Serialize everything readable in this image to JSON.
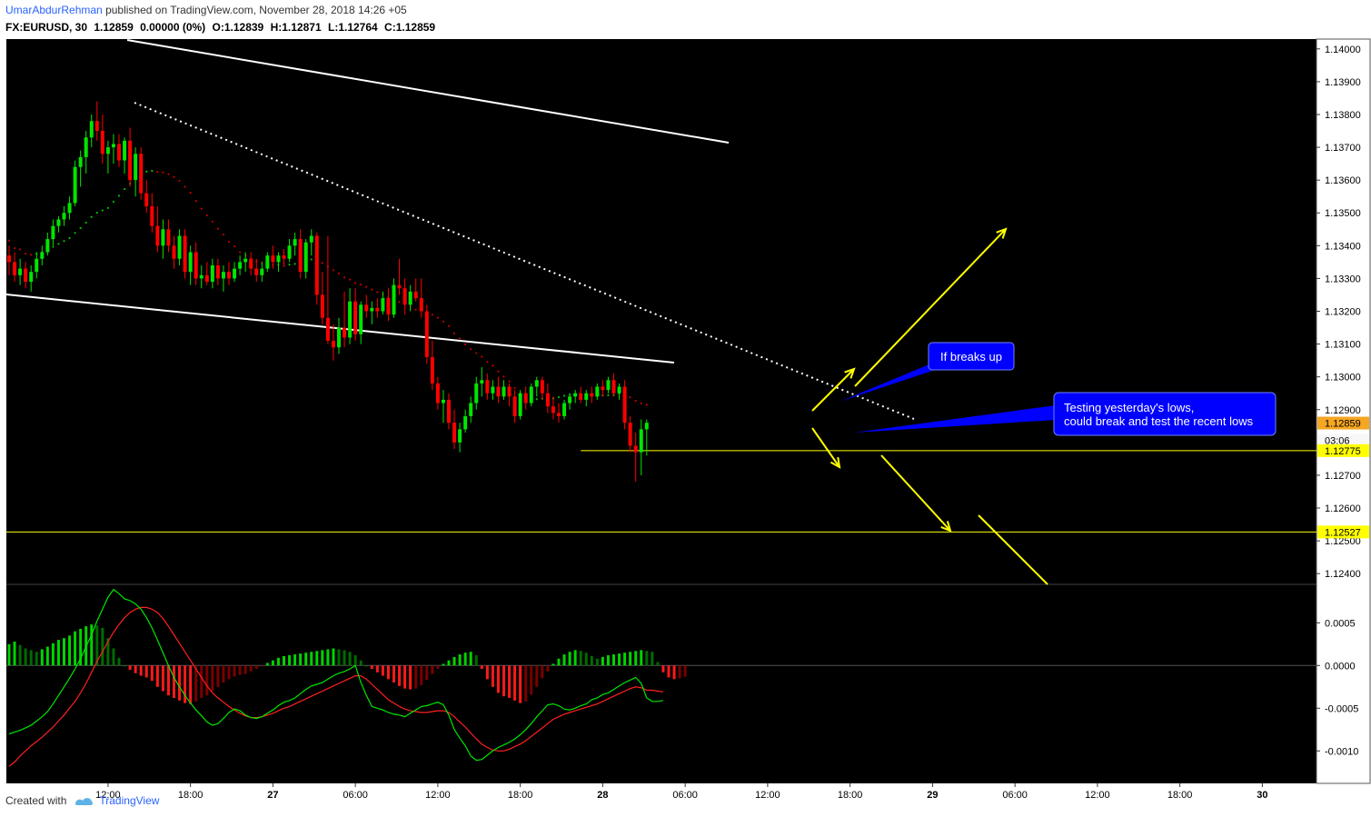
{
  "header": {
    "author": "UmarAbdurRehman",
    "published_text": "published on TradingView.com, November 28, 2018 14:26 +05",
    "symbol": "FX:EURUSD, 30",
    "last": "1.12859",
    "change": "0.00000 (0%)",
    "o_label": "O:",
    "o": "1.12839",
    "h_label": "H:",
    "h": "1.12871",
    "l_label": "L:",
    "l": "1.12764",
    "c_label": "C:",
    "c": "1.12859"
  },
  "footer": {
    "created_with": "Created with",
    "brand": "TradingView"
  },
  "chart_data": {
    "type": "candlestick",
    "bg": "#000000",
    "price_axis": {
      "ticks": [
        "1.14000",
        "1.13900",
        "1.13800",
        "1.13700",
        "1.13600",
        "1.13500",
        "1.13400",
        "1.13300",
        "1.13200",
        "1.13100",
        "1.13000",
        "1.12900",
        "1.12700",
        "1.12600",
        "1.12500",
        "1.12400"
      ],
      "min": 1.1237,
      "max": 1.1403
    },
    "price_labels": [
      {
        "text": "1.12859",
        "value": 1.12859,
        "bg": "#f5a623",
        "fg": "#000000"
      },
      {
        "text": "03:06",
        "value": 1.12806,
        "bg": "#f7f7f7",
        "fg": "#000000"
      },
      {
        "text": "1.12775",
        "value": 1.12775,
        "bg": "#ffff00",
        "fg": "#000000"
      },
      {
        "text": "1.12527",
        "value": 1.12527,
        "bg": "#ffff00",
        "fg": "#000000"
      }
    ],
    "time_axis": [
      "12:00",
      "18:00",
      "27",
      "06:00",
      "12:00",
      "18:00",
      "28",
      "06:00",
      "12:00",
      "18:00",
      "29",
      "06:00",
      "12:00",
      "18:00",
      "30"
    ],
    "macd_axis": {
      "ticks": [
        "0.0005",
        "0.0000",
        "-0.0005",
        "-0.0010"
      ],
      "min": -0.00138,
      "max": 0.00095
    },
    "candles": [
      [
        1.1337,
        1.134,
        1.1331,
        1.1335
      ],
      [
        1.1335,
        1.1338,
        1.1329,
        1.1331
      ],
      [
        1.1331,
        1.1336,
        1.1328,
        1.1333
      ],
      [
        1.1333,
        1.1335,
        1.1327,
        1.1329
      ],
      [
        1.1329,
        1.1334,
        1.1326,
        1.1332
      ],
      [
        1.1332,
        1.1338,
        1.133,
        1.1336
      ],
      [
        1.1336,
        1.134,
        1.1334,
        1.1338
      ],
      [
        1.1338,
        1.1344,
        1.1337,
        1.1342
      ],
      [
        1.1342,
        1.1348,
        1.134,
        1.1346
      ],
      [
        1.1346,
        1.1349,
        1.1344,
        1.1348
      ],
      [
        1.1348,
        1.1352,
        1.1346,
        1.135
      ],
      [
        1.135,
        1.1355,
        1.1348,
        1.1353
      ],
      [
        1.1353,
        1.1366,
        1.1352,
        1.1364
      ],
      [
        1.1364,
        1.1369,
        1.1358,
        1.1367
      ],
      [
        1.1367,
        1.1375,
        1.1362,
        1.1373
      ],
      [
        1.1373,
        1.138,
        1.137,
        1.1378
      ],
      [
        1.1378,
        1.1384,
        1.1372,
        1.1375
      ],
      [
        1.1375,
        1.138,
        1.1365,
        1.1368
      ],
      [
        1.1368,
        1.1372,
        1.1362,
        1.137
      ],
      [
        1.137,
        1.1374,
        1.1365,
        1.1371
      ],
      [
        1.1371,
        1.1374,
        1.1364,
        1.1366
      ],
      [
        1.1366,
        1.1373,
        1.1362,
        1.1372
      ],
      [
        1.1372,
        1.1376,
        1.1358,
        1.136
      ],
      [
        1.136,
        1.137,
        1.1355,
        1.1368
      ],
      [
        1.1368,
        1.137,
        1.1354,
        1.1356
      ],
      [
        1.1356,
        1.136,
        1.135,
        1.1352
      ],
      [
        1.1352,
        1.1356,
        1.1344,
        1.1346
      ],
      [
        1.1346,
        1.1352,
        1.1338,
        1.134
      ],
      [
        1.134,
        1.1348,
        1.1336,
        1.1345
      ],
      [
        1.1345,
        1.1348,
        1.1338,
        1.134
      ],
      [
        1.134,
        1.1343,
        1.1333,
        1.1336
      ],
      [
        1.1336,
        1.1345,
        1.1334,
        1.1343
      ],
      [
        1.1343,
        1.1345,
        1.133,
        1.1332
      ],
      [
        1.1332,
        1.134,
        1.1328,
        1.1338
      ],
      [
        1.1338,
        1.1341,
        1.1328,
        1.133
      ],
      [
        1.133,
        1.1334,
        1.1327,
        1.1331
      ],
      [
        1.1331,
        1.1335,
        1.1328,
        1.1329
      ],
      [
        1.1329,
        1.1336,
        1.1327,
        1.1334
      ],
      [
        1.1334,
        1.1336,
        1.1328,
        1.133
      ],
      [
        1.133,
        1.1334,
        1.1326,
        1.1332
      ],
      [
        1.1332,
        1.1335,
        1.1328,
        1.133
      ],
      [
        1.133,
        1.1335,
        1.1329,
        1.1333
      ],
      [
        1.1333,
        1.1337,
        1.1331,
        1.1335
      ],
      [
        1.1335,
        1.1338,
        1.1332,
        1.1336
      ],
      [
        1.1336,
        1.1338,
        1.1331,
        1.1333
      ],
      [
        1.1333,
        1.1336,
        1.1329,
        1.1331
      ],
      [
        1.1331,
        1.1335,
        1.1329,
        1.1333
      ],
      [
        1.1333,
        1.1338,
        1.1332,
        1.1337
      ],
      [
        1.1337,
        1.134,
        1.1333,
        1.1335
      ],
      [
        1.1335,
        1.1338,
        1.1332,
        1.1337
      ],
      [
        1.1337,
        1.1339,
        1.1334,
        1.1336
      ],
      [
        1.1336,
        1.1342,
        1.1335,
        1.134
      ],
      [
        1.134,
        1.1344,
        1.1337,
        1.1342
      ],
      [
        1.1342,
        1.1345,
        1.133,
        1.1332
      ],
      [
        1.1332,
        1.1342,
        1.133,
        1.1341
      ],
      [
        1.1341,
        1.1345,
        1.1337,
        1.1343
      ],
      [
        1.1343,
        1.1344,
        1.1322,
        1.1325
      ],
      [
        1.1325,
        1.1332,
        1.1316,
        1.1318
      ],
      [
        1.1318,
        1.1343,
        1.131,
        1.1311
      ],
      [
        1.1311,
        1.1316,
        1.1305,
        1.1309
      ],
      [
        1.1309,
        1.1318,
        1.1307,
        1.1315
      ],
      [
        1.1315,
        1.1326,
        1.1309,
        1.1312
      ],
      [
        1.1312,
        1.1327,
        1.131,
        1.1323
      ],
      [
        1.1323,
        1.1327,
        1.1311,
        1.1313
      ],
      [
        1.1313,
        1.1323,
        1.131,
        1.1322
      ],
      [
        1.1322,
        1.1325,
        1.1318,
        1.132
      ],
      [
        1.132,
        1.1323,
        1.1316,
        1.1321
      ],
      [
        1.1321,
        1.1324,
        1.1318,
        1.132
      ],
      [
        1.132,
        1.1326,
        1.1319,
        1.1324
      ],
      [
        1.1324,
        1.1327,
        1.1317,
        1.1319
      ],
      [
        1.1319,
        1.133,
        1.1318,
        1.1328
      ],
      [
        1.1328,
        1.1336,
        1.1325,
        1.1327
      ],
      [
        1.1327,
        1.133,
        1.1319,
        1.1322
      ],
      [
        1.1322,
        1.1328,
        1.132,
        1.1326
      ],
      [
        1.1326,
        1.133,
        1.1323,
        1.1324
      ],
      [
        1.1324,
        1.133,
        1.1318,
        1.132
      ],
      [
        1.132,
        1.1322,
        1.1304,
        1.1306
      ],
      [
        1.1306,
        1.1311,
        1.1296,
        1.1298
      ],
      [
        1.1298,
        1.13,
        1.129,
        1.1292
      ],
      [
        1.1292,
        1.1296,
        1.1286,
        1.1293
      ],
      [
        1.1293,
        1.1295,
        1.1284,
        1.1286
      ],
      [
        1.1286,
        1.129,
        1.1278,
        1.128
      ],
      [
        1.128,
        1.1286,
        1.1277,
        1.1284
      ],
      [
        1.1284,
        1.129,
        1.1283,
        1.1288
      ],
      [
        1.1288,
        1.1294,
        1.1286,
        1.1292
      ],
      [
        1.1292,
        1.13,
        1.129,
        1.1298
      ],
      [
        1.1298,
        1.1303,
        1.1294,
        1.1299
      ],
      [
        1.1299,
        1.1301,
        1.1293,
        1.1295
      ],
      [
        1.1295,
        1.1299,
        1.1293,
        1.1297
      ],
      [
        1.1297,
        1.13,
        1.1292,
        1.1294
      ],
      [
        1.1294,
        1.1299,
        1.1293,
        1.1297
      ],
      [
        1.1297,
        1.1298,
        1.1291,
        1.1294
      ],
      [
        1.1294,
        1.1296,
        1.1286,
        1.1288
      ],
      [
        1.1288,
        1.1296,
        1.1287,
        1.1295
      ],
      [
        1.1295,
        1.1297,
        1.129,
        1.1292
      ],
      [
        1.1292,
        1.1298,
        1.1291,
        1.1297
      ],
      [
        1.1297,
        1.13,
        1.1294,
        1.1299
      ],
      [
        1.1299,
        1.13,
        1.1293,
        1.1295
      ],
      [
        1.1295,
        1.1298,
        1.1289,
        1.1291
      ],
      [
        1.1291,
        1.1294,
        1.1287,
        1.1289
      ],
      [
        1.1289,
        1.1292,
        1.1286,
        1.1288
      ],
      [
        1.1288,
        1.1293,
        1.1287,
        1.1292
      ],
      [
        1.1292,
        1.1295,
        1.129,
        1.1294
      ],
      [
        1.1294,
        1.1296,
        1.1292,
        1.1295
      ],
      [
        1.1295,
        1.1297,
        1.1292,
        1.1293
      ],
      [
        1.1293,
        1.1296,
        1.1291,
        1.1295
      ],
      [
        1.1295,
        1.1297,
        1.1292,
        1.1294
      ],
      [
        1.1294,
        1.1298,
        1.1293,
        1.1297
      ],
      [
        1.1297,
        1.1299,
        1.1294,
        1.1296
      ],
      [
        1.1296,
        1.13,
        1.1295,
        1.1299
      ],
      [
        1.1299,
        1.1301,
        1.1294,
        1.1295
      ],
      [
        1.1295,
        1.1298,
        1.1293,
        1.1297
      ],
      [
        1.1297,
        1.1299,
        1.1284,
        1.1286
      ],
      [
        1.1286,
        1.1288,
        1.1277,
        1.1279
      ],
      [
        1.1279,
        1.1283,
        1.1268,
        1.1277
      ],
      [
        1.1277,
        1.1287,
        1.127,
        1.1284
      ],
      [
        1.1284,
        1.1287,
        1.1276,
        1.1286
      ]
    ],
    "macd": {
      "hist": [
        0.00025,
        0.00028,
        0.00024,
        0.0002,
        0.00018,
        0.00016,
        0.00019,
        0.00022,
        0.00026,
        0.0003,
        0.00032,
        0.00035,
        0.0004,
        0.00043,
        0.00046,
        0.00048,
        0.00047,
        0.00044,
        0.00032,
        0.0002,
        9e-05,
        0.0,
        -5e-05,
        -9e-05,
        -0.00012,
        -0.00014,
        -0.00018,
        -0.00025,
        -0.0003,
        -0.00035,
        -0.00038,
        -0.00041,
        -0.00044,
        -0.00045,
        -0.00042,
        -0.00038,
        -0.00035,
        -0.0003,
        -0.00025,
        -0.0002,
        -0.00016,
        -0.00013,
        -0.00011,
        -0.0001,
        -7e-05,
        -4e-05,
        -1e-05,
        3e-05,
        6e-05,
        9e-05,
        0.00011,
        0.00012,
        0.00013,
        0.00014,
        0.00015,
        0.00016,
        0.00017,
        0.00018,
        0.00019,
        0.0002,
        0.00019,
        0.00018,
        0.00016,
        0.00012,
        6e-05,
        0.0,
        -4e-05,
        -8e-05,
        -0.00012,
        -0.00016,
        -0.0002,
        -0.00024,
        -0.00027,
        -0.00028,
        -0.00027,
        -0.00023,
        -0.00017,
        -0.0001,
        -4e-05,
        2e-05,
        6e-05,
        0.0001,
        0.00013,
        0.00015,
        0.00016,
        0.00012,
        -4e-05,
        -0.00016,
        -0.00025,
        -0.00032,
        -0.00036,
        -0.00038,
        -0.00041,
        -0.00044,
        -0.00042,
        -0.00034,
        -0.00025,
        -0.00015,
        -7e-05,
        2e-05,
        8e-05,
        0.00013,
        0.00016,
        0.00018,
        0.00017,
        0.00015,
        0.00011,
        8e-05,
        0.0001,
        0.00012,
        0.00013,
        0.00014,
        0.00015,
        0.00016,
        0.00017,
        0.00018,
        0.00017,
        0.00016,
        4e-05,
        -8e-05,
        -0.00014,
        -0.00016,
        -0.00015,
        -0.00013
      ],
      "macd_line": [
        -0.0008,
        -0.00078,
        -0.00076,
        -0.00073,
        -0.0007,
        -0.00065,
        -0.0006,
        -0.00054,
        -0.00045,
        -0.00035,
        -0.00025,
        -0.00015,
        -4e-05,
        8e-05,
        0.00022,
        0.00036,
        0.00052,
        0.00066,
        0.0008,
        0.00089,
        0.00084,
        0.00078,
        0.00076,
        0.00072,
        0.00066,
        0.00056,
        0.00044,
        0.0003,
        0.00015,
        0.0,
        -0.00014,
        -0.00025,
        -0.00035,
        -0.00044,
        -0.00052,
        -0.00059,
        -0.00066,
        -0.0007,
        -0.00068,
        -0.00062,
        -0.00055,
        -0.00051,
        -0.00053,
        -0.00058,
        -0.00061,
        -0.00062,
        -0.0006,
        -0.00056,
        -0.00052,
        -0.00047,
        -0.00043,
        -0.00041,
        -0.00038,
        -0.00033,
        -0.00028,
        -0.00024,
        -0.00022,
        -0.0002,
        -0.00016,
        -0.00012,
        -9e-05,
        -7e-05,
        -4e-05,
        0.0,
        -0.0002,
        -0.00035,
        -0.00048,
        -0.0005,
        -0.00052,
        -0.00055,
        -0.00057,
        -0.00058,
        -0.0006,
        -0.00056,
        -0.00052,
        -0.00048,
        -0.00047,
        -0.00045,
        -0.00043,
        -0.00046,
        -0.00058,
        -0.00075,
        -0.00085,
        -0.00094,
        -0.00106,
        -0.00111,
        -0.0011,
        -0.00105,
        -0.001,
        -0.00096,
        -0.00093,
        -0.0009,
        -0.00086,
        -0.00081,
        -0.00075,
        -0.00068,
        -0.0006,
        -0.00053,
        -0.00046,
        -0.00045,
        -0.00047,
        -0.00051,
        -0.00052,
        -0.0005,
        -0.00047,
        -0.00045,
        -0.0004,
        -0.00038,
        -0.00034,
        -0.00032,
        -0.00028,
        -0.00024,
        -0.0002,
        -0.00017,
        -0.00014,
        -0.00021,
        -0.00038,
        -0.00042,
        -0.00042,
        -0.00041
      ],
      "signal_line": [
        -0.00118,
        -0.00113,
        -0.00106,
        -0.001,
        -0.00094,
        -0.00089,
        -0.00084,
        -0.00078,
        -0.00072,
        -0.00065,
        -0.00058,
        -0.0005,
        -0.00042,
        -0.00032,
        -0.00021,
        -8e-05,
        5e-05,
        0.00016,
        0.00028,
        0.00039,
        0.00048,
        0.00056,
        0.00062,
        0.00066,
        0.00068,
        0.00068,
        0.00066,
        0.00062,
        0.00055,
        0.00046,
        0.00036,
        0.00026,
        0.00016,
        6e-05,
        -4e-05,
        -0.00014,
        -0.00024,
        -0.00032,
        -0.00038,
        -0.00043,
        -0.00048,
        -0.00052,
        -0.00056,
        -0.00059,
        -0.00061,
        -0.00061,
        -0.0006,
        -0.00058,
        -0.00056,
        -0.00053,
        -0.0005,
        -0.00048,
        -0.00045,
        -0.00042,
        -0.00039,
        -0.00036,
        -0.00033,
        -0.0003,
        -0.00027,
        -0.00024,
        -0.00021,
        -0.00018,
        -0.00015,
        -0.00012,
        -0.00012,
        -0.00016,
        -0.00022,
        -0.00028,
        -0.00034,
        -0.0004,
        -0.00044,
        -0.00048,
        -0.00051,
        -0.00053,
        -0.00054,
        -0.00055,
        -0.00055,
        -0.00054,
        -0.00053,
        -0.00053,
        -0.00055,
        -0.0006,
        -0.00066,
        -0.00072,
        -0.00079,
        -0.00086,
        -0.00092,
        -0.00096,
        -0.00099,
        -0.001,
        -0.001,
        -0.00098,
        -0.00095,
        -0.00092,
        -0.00088,
        -0.00083,
        -0.00078,
        -0.00073,
        -0.00068,
        -0.00063,
        -0.0006,
        -0.00057,
        -0.00055,
        -0.00053,
        -0.00051,
        -0.00049,
        -0.00047,
        -0.00045,
        -0.00042,
        -0.00039,
        -0.00036,
        -0.00033,
        -0.0003,
        -0.00027,
        -0.00025,
        -0.00026,
        -0.00029,
        -0.00029,
        -0.0003,
        -0.00031
      ]
    },
    "annotations": [
      {
        "text": "If breaks up"
      },
      {
        "text": "Testing yesterday's lows,\ncould break and test the recent lows"
      }
    ],
    "colors": {
      "up": "#00e600",
      "down": "#ff0000",
      "trend": "#ffffff",
      "projection": "#ffff00",
      "callout": "#0000ff",
      "ma_up": "#00c000",
      "ma_down": "#c00000",
      "macd": "#00e600",
      "signal": "#ff2020"
    }
  }
}
